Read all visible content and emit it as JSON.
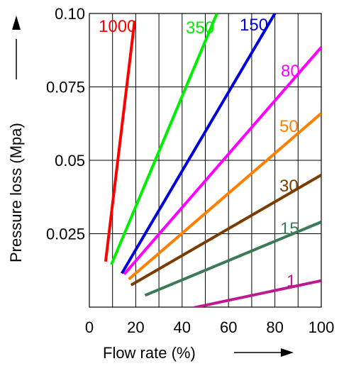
{
  "chart_data": {
    "type": "line",
    "title": "",
    "xlabel": "Flow rate (%)",
    "ylabel": "Pressure loss (Mpa)",
    "xlim": [
      0,
      100
    ],
    "ylim": [
      0,
      0.1
    ],
    "x_ticks": [
      0,
      20,
      40,
      60,
      80,
      100
    ],
    "x_tick_labels": [
      "0",
      "20",
      "40",
      "60",
      "80",
      "100"
    ],
    "y_ticks": [
      0.025,
      0.05,
      0.075,
      0.1
    ],
    "y_tick_labels": [
      "0.025",
      "0.05",
      "0.075",
      "0.10"
    ],
    "x_grid_step": 10,
    "grid": true,
    "legend": "inline labels",
    "series": [
      {
        "name": "1000",
        "color": "#ff0000",
        "points": [
          [
            7,
            0.0155
          ],
          [
            19.5,
            0.0975
          ]
        ]
      },
      {
        "name": "350",
        "color": "#00ee00",
        "points": [
          [
            9.5,
            0.0145
          ],
          [
            55,
            0.1
          ]
        ]
      },
      {
        "name": "150",
        "color": "#0000dd",
        "points": [
          [
            14,
            0.0115
          ],
          [
            80,
            0.1
          ]
        ]
      },
      {
        "name": "80",
        "color": "#ff00ff",
        "points": [
          [
            15,
            0.0112
          ],
          [
            100,
            0.0885
          ]
        ]
      },
      {
        "name": "50",
        "color": "#ff8000",
        "points": [
          [
            17,
            0.0095
          ],
          [
            100,
            0.066
          ]
        ]
      },
      {
        "name": "30",
        "color": "#7a3c00",
        "points": [
          [
            18,
            0.0075
          ],
          [
            100,
            0.045
          ]
        ]
      },
      {
        "name": "15",
        "color": "#3a7a55",
        "points": [
          [
            24,
            0.004
          ],
          [
            100,
            0.029
          ]
        ]
      },
      {
        "name": "1",
        "color": "#c01890",
        "points": [
          [
            45,
            -0.0002
          ],
          [
            100,
            0.009
          ]
        ]
      }
    ]
  }
}
